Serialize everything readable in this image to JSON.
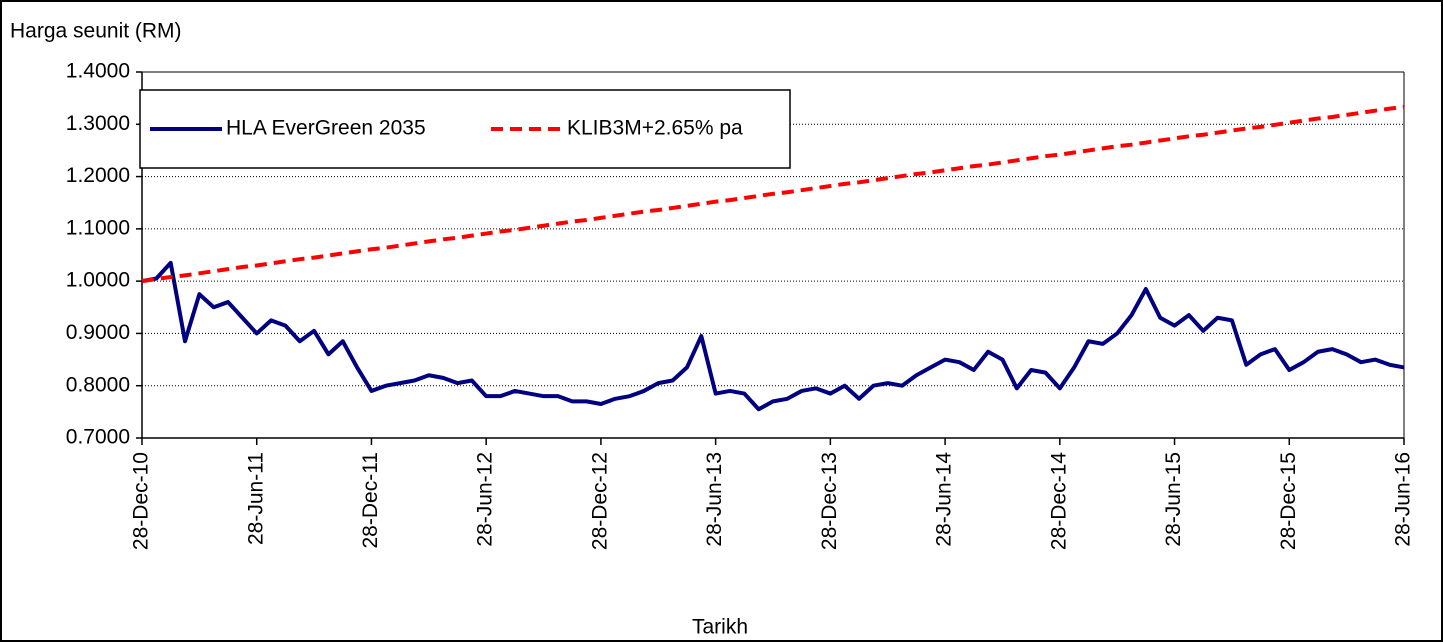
{
  "chart_data": {
    "type": "line",
    "y_label": "Harga seunit (RM)",
    "x_label": "Tarikh",
    "categories": [
      "28-Dec-10",
      null,
      null,
      null,
      null,
      null,
      null,
      null,
      "28-Jun-11",
      null,
      null,
      null,
      null,
      null,
      null,
      null,
      "28-Dec-11",
      null,
      null,
      null,
      null,
      null,
      null,
      null,
      "28-Jun-12",
      null,
      null,
      null,
      null,
      null,
      null,
      null,
      "28-Dec-12",
      null,
      null,
      null,
      null,
      null,
      null,
      null,
      "28-Jun-13",
      null,
      null,
      null,
      null,
      null,
      null,
      null,
      "28-Dec-13",
      null,
      null,
      null,
      null,
      null,
      null,
      null,
      "28-Jun-14",
      null,
      null,
      null,
      null,
      null,
      null,
      null,
      "28-Dec-14",
      null,
      null,
      null,
      null,
      null,
      null,
      null,
      "28-Jun-15",
      null,
      null,
      null,
      null,
      null,
      null,
      null,
      "28-Dec-15",
      null,
      null,
      null,
      null,
      null,
      null,
      null,
      "28-Jun-16"
    ],
    "series": [
      {
        "name": "HLA EverGreen 2035",
        "color": "#000080",
        "dash": "solid",
        "values": [
          1.0,
          1.005,
          1.035,
          0.885,
          0.975,
          0.95,
          0.96,
          0.93,
          0.9,
          0.925,
          0.915,
          0.885,
          0.905,
          0.86,
          0.885,
          0.835,
          0.79,
          0.8,
          0.805,
          0.81,
          0.82,
          0.815,
          0.805,
          0.81,
          0.78,
          0.78,
          0.79,
          0.785,
          0.78,
          0.78,
          0.77,
          0.77,
          0.765,
          0.775,
          0.78,
          0.79,
          0.805,
          0.81,
          0.835,
          0.895,
          0.785,
          0.79,
          0.785,
          0.755,
          0.77,
          0.775,
          0.79,
          0.795,
          0.785,
          0.8,
          0.775,
          0.8,
          0.805,
          0.8,
          0.82,
          0.835,
          0.85,
          0.845,
          0.83,
          0.865,
          0.85,
          0.795,
          0.83,
          0.825,
          0.795,
          0.835,
          0.885,
          0.88,
          0.9,
          0.935,
          0.985,
          0.93,
          0.915,
          0.935,
          0.905,
          0.93,
          0.925,
          0.84,
          0.86,
          0.87,
          0.83,
          0.845,
          0.865,
          0.87,
          0.86,
          0.845,
          0.85,
          0.84,
          0.835
        ]
      },
      {
        "name": "KLIB3M+2.65% pa",
        "color": "#ff0000",
        "dash": "dashed",
        "values": [
          1.0,
          1.004,
          1.008,
          1.011,
          1.015,
          1.019,
          1.023,
          1.027,
          1.03,
          1.034,
          1.038,
          1.042,
          1.045,
          1.049,
          1.053,
          1.057,
          1.061,
          1.064,
          1.068,
          1.072,
          1.076,
          1.08,
          1.083,
          1.087,
          1.091,
          1.095,
          1.098,
          1.102,
          1.106,
          1.11,
          1.114,
          1.117,
          1.121,
          1.125,
          1.129,
          1.133,
          1.136,
          1.14,
          1.144,
          1.148,
          1.152,
          1.155,
          1.159,
          1.163,
          1.167,
          1.17,
          1.174,
          1.178,
          1.182,
          1.186,
          1.189,
          1.193,
          1.197,
          1.201,
          1.205,
          1.208,
          1.212,
          1.216,
          1.22,
          1.223,
          1.227,
          1.231,
          1.235,
          1.239,
          1.242,
          1.246,
          1.25,
          1.254,
          1.258,
          1.261,
          1.265,
          1.269,
          1.273,
          1.277,
          1.28,
          1.284,
          1.288,
          1.292,
          1.295,
          1.299,
          1.303,
          1.307,
          1.311,
          1.314,
          1.318,
          1.322,
          1.326,
          1.33,
          1.333
        ]
      }
    ],
    "ylim": [
      0.7,
      1.4
    ],
    "yticks": [
      {
        "value": 0.7,
        "label": "0.7000"
      },
      {
        "value": 0.8,
        "label": "0.8000"
      },
      {
        "value": 0.9,
        "label": "0.9000"
      },
      {
        "value": 1.0,
        "label": "1.0000"
      },
      {
        "value": 1.1,
        "label": "1.1000"
      },
      {
        "value": 1.2,
        "label": "1.2000"
      },
      {
        "value": 1.3,
        "label": "1.3000"
      },
      {
        "value": 1.4,
        "label": "1.4000"
      }
    ],
    "grid": true,
    "legend": "top-left"
  }
}
